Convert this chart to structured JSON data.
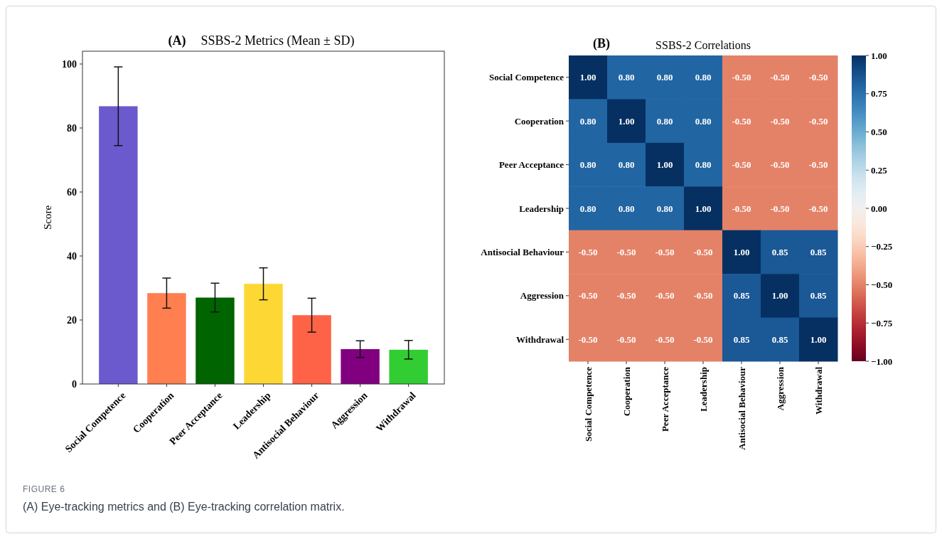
{
  "chart_data": [
    {
      "type": "bar",
      "title": "SSBS-2 Metrics (Mean ± SD)",
      "ylabel": "Score",
      "annotations": [
        "(A)",
        "FIGURE 6",
        "(A) Eye-tracking metrics and (B) Eye-tracking correlation matrix."
      ],
      "categories": [
        "Social Competence",
        "Cooperation",
        "Peer Acceptance",
        "Leadership",
        "Antisocial Behaviour",
        "Aggression",
        "Withdrawal"
      ],
      "values": [
        86.8,
        28.4,
        27.0,
        31.3,
        21.5,
        10.9,
        10.7
      ],
      "errors": [
        12.3,
        4.7,
        4.5,
        5.0,
        5.3,
        2.6,
        2.9
      ],
      "colors": [
        "#6a5acd",
        "#ff7f50",
        "#006400",
        "#fdd835",
        "#ff6347",
        "#800080",
        "#32cd32"
      ],
      "ylim": [
        0,
        104
      ],
      "yticks": [
        0,
        20,
        40,
        60,
        80,
        100
      ],
      "grid": false
    },
    {
      "type": "heatmap",
      "title": "SSBS-2 Correlations",
      "annotations": [
        "(B)"
      ],
      "categories": [
        "Social Competence",
        "Cooperation",
        "Peer Acceptance",
        "Leadership",
        "Antisocial Behaviour",
        "Aggression",
        "Withdrawal"
      ],
      "y_categories": [
        "Social Competence",
        "Cooperation",
        "Peer Acceptance",
        "Leadership",
        "Antisocial Behaviour",
        "Aggression",
        "Withdrawal"
      ],
      "cells": [
        [
          1.0,
          0.8,
          0.8,
          0.8,
          -0.5,
          -0.5,
          -0.5
        ],
        [
          0.8,
          1.0,
          0.8,
          0.8,
          -0.5,
          -0.5,
          -0.5
        ],
        [
          0.8,
          0.8,
          1.0,
          0.8,
          -0.5,
          -0.5,
          -0.5
        ],
        [
          0.8,
          0.8,
          0.8,
          1.0,
          -0.5,
          -0.5,
          -0.5
        ],
        [
          -0.5,
          -0.5,
          -0.5,
          -0.5,
          1.0,
          0.85,
          0.85
        ],
        [
          -0.5,
          -0.5,
          -0.5,
          -0.5,
          0.85,
          1.0,
          0.85
        ],
        [
          -0.5,
          -0.5,
          -0.5,
          -0.5,
          0.85,
          0.85,
          1.0
        ]
      ],
      "cell_labels": [
        [
          "1.00",
          "0.80",
          "0.80",
          "0.80",
          "-0.50",
          "-0.50",
          "-0.50"
        ],
        [
          "0.80",
          "1.00",
          "0.80",
          "0.80",
          "-0.50",
          "-0.50",
          "-0.50"
        ],
        [
          "0.80",
          "0.80",
          "1.00",
          "0.80",
          "-0.50",
          "-0.50",
          "-0.50"
        ],
        [
          "0.80",
          "0.80",
          "0.80",
          "1.00",
          "-0.50",
          "-0.50",
          "-0.50"
        ],
        [
          "-0.50",
          "-0.50",
          "-0.50",
          "-0.50",
          "1.00",
          "0.85",
          "0.85"
        ],
        [
          "-0.50",
          "-0.50",
          "-0.50",
          "-0.50",
          "0.85",
          "1.00",
          "0.85"
        ],
        [
          "-0.50",
          "-0.50",
          "-0.50",
          "-0.50",
          "0.85",
          "0.85",
          "1.00"
        ]
      ],
      "clim": [
        -1,
        1
      ],
      "cticks": [
        {
          "value": 1,
          "label": "1.00"
        },
        {
          "value": 0.75,
          "label": "0.75"
        },
        {
          "value": 0.5,
          "label": "0.50"
        },
        {
          "value": 0.25,
          "label": "0.25"
        },
        {
          "value": 0,
          "label": "0.00"
        },
        {
          "value": -0.25,
          "label": "−0.25"
        },
        {
          "value": -0.5,
          "label": "−0.50"
        },
        {
          "value": -0.75,
          "label": "−0.75"
        },
        {
          "value": -1,
          "label": "−1.00"
        }
      ]
    }
  ]
}
